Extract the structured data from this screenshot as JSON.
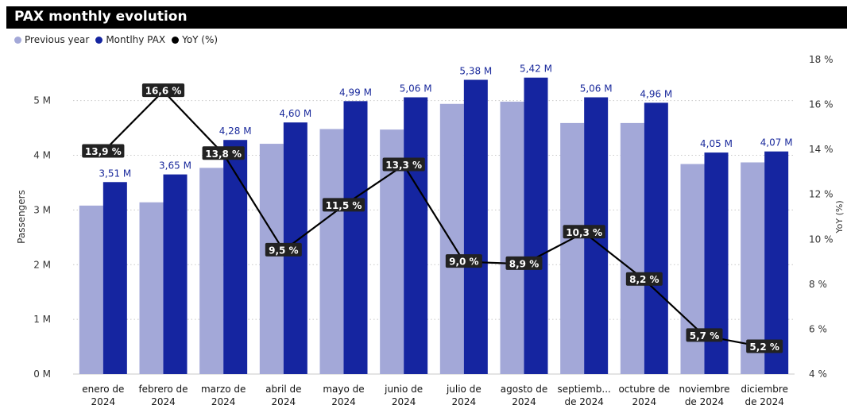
{
  "chart_data": {
    "type": "bar",
    "title": "PAX monthly evolution",
    "categories": [
      [
        "enero de",
        "2024"
      ],
      [
        "febrero de",
        "2024"
      ],
      [
        "marzo de",
        "2024"
      ],
      [
        "abril de",
        "2024"
      ],
      [
        "mayo de",
        "2024"
      ],
      [
        "junio de",
        "2024"
      ],
      [
        "julio de",
        "2024"
      ],
      [
        "agosto de",
        "2024"
      ],
      [
        "septiemb...",
        "de 2024"
      ],
      [
        "octubre de",
        "2024"
      ],
      [
        "noviembre",
        "de 2024"
      ],
      [
        "diciembre",
        "de 2024"
      ]
    ],
    "series": [
      {
        "name": "Previous year",
        "type": "bar",
        "color": "#a3a8d8",
        "values": [
          3.08,
          3.14,
          3.77,
          4.21,
          4.48,
          4.47,
          4.94,
          4.98,
          4.59,
          4.59,
          3.84,
          3.87
        ]
      },
      {
        "name": "Montlhy PAX",
        "type": "bar",
        "color": "#1525a0",
        "values": [
          3.51,
          3.65,
          4.28,
          4.6,
          4.99,
          5.06,
          5.38,
          5.42,
          5.06,
          4.96,
          4.05,
          4.07
        ],
        "labels": [
          "3,51 M",
          "3,65 M",
          "4,28 M",
          "4,60 M",
          "4,99 M",
          "5,06 M",
          "5,38 M",
          "5,42 M",
          "5,06 M",
          "4,96 M",
          "4,05 M",
          "4,07 M"
        ]
      },
      {
        "name": "YoY (%)",
        "type": "line",
        "color": "#000000",
        "axis": "right",
        "values": [
          13.9,
          16.6,
          13.8,
          9.5,
          11.5,
          13.3,
          9.0,
          8.9,
          10.3,
          8.2,
          5.7,
          5.2
        ],
        "labels": [
          "13,9 %",
          "16,6 %",
          "13,8 %",
          "9,5 %",
          "11,5 %",
          "13,3 %",
          "9,0 %",
          "8,9 %",
          "10,3 %",
          "8,2 %",
          "5,7 %",
          "5,2 %"
        ]
      }
    ],
    "ylabel": "Passengers",
    "ylim": [
      0,
      5.75
    ],
    "yticks": [
      0,
      1,
      2,
      3,
      4,
      5
    ],
    "ytick_labels": [
      "0 M",
      "1 M",
      "2 M",
      "3 M",
      "4 M",
      "5 M"
    ],
    "y2label": "YoY (%)",
    "y2lim": [
      4,
      18
    ],
    "y2ticks": [
      4,
      6,
      8,
      10,
      12,
      14,
      16,
      18
    ],
    "y2tick_labels": [
      "4 %",
      "6 %",
      "8 %",
      "10 %",
      "12 %",
      "14 %",
      "16 %",
      "18 %"
    ],
    "grid": true,
    "legend": "top-left"
  }
}
